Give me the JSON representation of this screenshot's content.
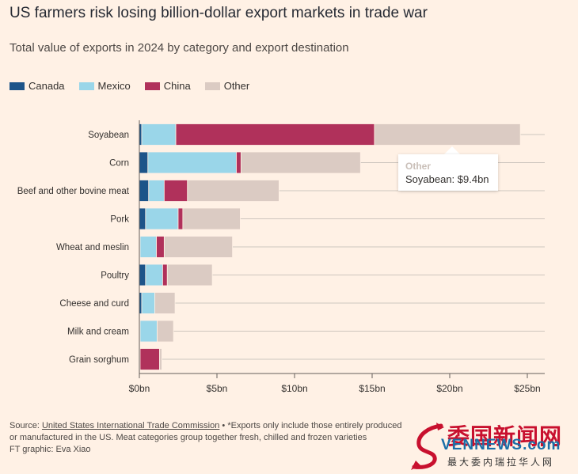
{
  "header": {
    "title": "US farmers risk losing billion-dollar export markets in trade war",
    "subtitle": "Total value of exports in 2024 by category and export destination"
  },
  "legend": [
    {
      "label": "Canada",
      "color": "#1D5489"
    },
    {
      "label": "Mexico",
      "color": "#9AD6E9"
    },
    {
      "label": "China",
      "color": "#B0315B"
    },
    {
      "label": "Other",
      "color": "#DBCBC3"
    }
  ],
  "chart_data": {
    "type": "bar",
    "orientation": "horizontal",
    "stacked": true,
    "categories": [
      "Soyabean",
      "Corn",
      "Beef and other bovine meat",
      "Pork",
      "Wheat and meslin",
      "Poultry",
      "Cheese and curd",
      "Milk and cream",
      "Grain sorghum"
    ],
    "series": [
      {
        "name": "Canada",
        "color": "#1D5489",
        "values": [
          0.15,
          0.55,
          0.6,
          0.4,
          0.05,
          0.4,
          0.15,
          0.05,
          0.0
        ]
      },
      {
        "name": "Mexico",
        "color": "#9AD6E9",
        "values": [
          2.2,
          5.7,
          1.0,
          2.1,
          1.05,
          1.1,
          0.85,
          1.1,
          0.05
        ]
      },
      {
        "name": "China",
        "color": "#B0315B",
        "values": [
          12.8,
          0.3,
          1.5,
          0.3,
          0.5,
          0.3,
          0.0,
          0.0,
          1.25
        ]
      },
      {
        "name": "Other",
        "color": "#DBCBC3",
        "values": [
          9.4,
          7.7,
          5.9,
          3.7,
          4.4,
          2.9,
          1.3,
          1.05,
          0.15
        ]
      }
    ],
    "xlim": [
      0,
      26
    ],
    "xticks": [
      0,
      5,
      10,
      15,
      20,
      25
    ],
    "xtick_labels": [
      "$0bn",
      "$5bn",
      "$10bn",
      "$15bn",
      "$20bn",
      "$25bn"
    ],
    "grid": true
  },
  "tooltip": {
    "series": "Other",
    "text": "Soyabean: $9.4bn"
  },
  "footer": {
    "source_prefix": "Source: ",
    "source_link": "United States International Trade Commission",
    "source_note": " • *Exports only include those entirely produced or manufactured in the US. Meat categories group together fresh, chilled and frozen varieties",
    "credit": "FT graphic: Eva Xiao"
  },
  "watermark": {
    "title": "委国新闻网",
    "brand": "VENNEWS.com",
    "tagline": "最大委内瑞拉华人网"
  }
}
